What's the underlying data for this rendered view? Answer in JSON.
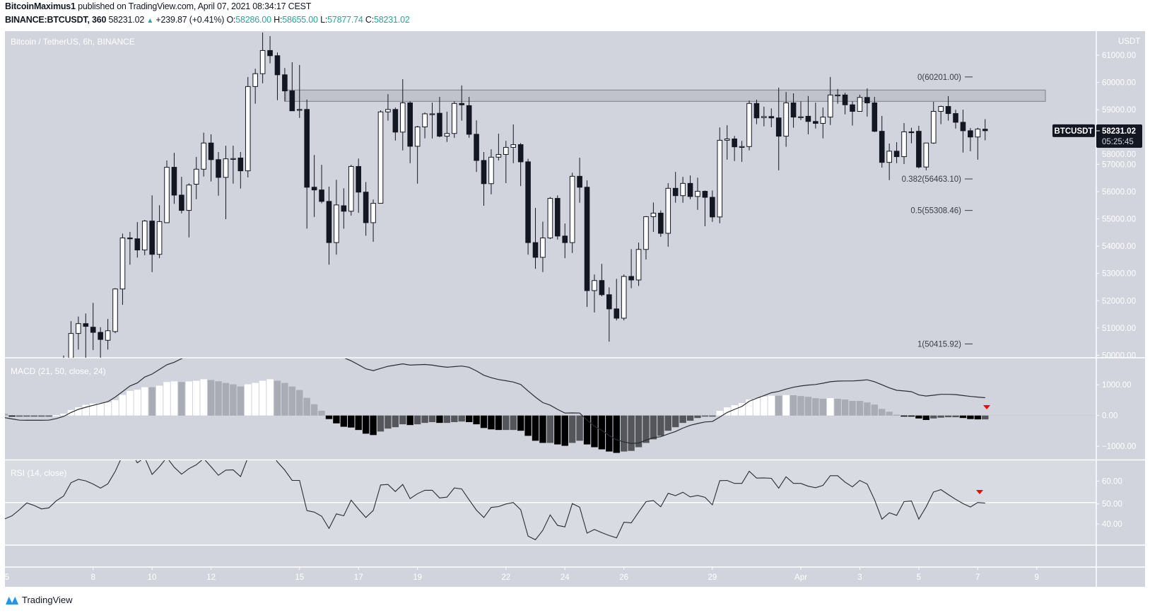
{
  "header": {
    "author": "BitcoinMaximus1",
    "published": "published on TradingView.com, April 07, 2021 08:34:17 CEST",
    "symbol": "BINANCE:BTCUSDT, 360",
    "last": "58231.02",
    "change": "+239.87 (+0.41%)",
    "open_label": "O:",
    "open": "58286.00",
    "high_label": "H:",
    "high": "58655.00",
    "low_label": "L:",
    "low": "57877.74",
    "close_label": "C:",
    "close": "58231.02"
  },
  "colors": {
    "background": "#d1d4dc",
    "rsi_band": "#d8dbe1",
    "up_candle": "#ffffff",
    "down_candle": "#131722",
    "hist_pos_rising": "#ffffff",
    "hist_pos_falling": "#a9acb4",
    "hist_neg_falling": "#000000",
    "hist_neg_rising": "#54565b",
    "line": "#2a2c31",
    "zone_fill": "rgba(160,163,172,0.35)",
    "zone_border": "#8a8d94",
    "annotation": "#ff0000",
    "accent": "#26a69a"
  },
  "price_label": {
    "symbol": "BTCUSDT",
    "price": "58231.02",
    "countdown": "05:25:45"
  },
  "time_axis": {
    "labels": [
      "5",
      "8",
      "10",
      "12",
      "15",
      "17",
      "19",
      "22",
      "24",
      "26",
      "29",
      "Apr",
      "3",
      "5",
      "7",
      "9"
    ]
  },
  "footer": {
    "brand": "TradingView"
  },
  "chart_data": [
    {
      "type": "candlestick",
      "title": "Bitcoin / TetherUS, 6h, BINANCE",
      "currency": "USDT",
      "y_ticks": [
        "61000.00",
        "60000.00",
        "59000.00",
        "58000.00",
        "57000.00",
        "56000.00",
        "55000.00",
        "54000.00",
        "53000.00",
        "52000.00",
        "51000.00",
        "50000.00"
      ],
      "ylim": [
        49900,
        61880
      ],
      "last_price": 58231.02,
      "resistance_zone": [
        59305,
        59720
      ],
      "fib_levels": [
        {
          "label": "0(60201.00)",
          "price": 60201.0
        },
        {
          "label": "0.382(56463.10)",
          "price": 56463.1
        },
        {
          "label": "0.5(55308.46)",
          "price": 55308.46
        },
        {
          "label": "1(50415.92)",
          "price": 50415.92
        }
      ],
      "ohlc": [
        [
          49400,
          49990,
          49000,
          49800
        ],
        [
          49700,
          51250,
          49400,
          50800
        ],
        [
          50800,
          51420,
          50210,
          51160
        ],
        [
          51160,
          51530,
          49600,
          51060
        ],
        [
          51030,
          51920,
          50190,
          50840
        ],
        [
          50840,
          51030,
          49700,
          50580
        ],
        [
          50550,
          51330,
          50210,
          50900
        ],
        [
          50870,
          52460,
          50810,
          52430
        ],
        [
          52430,
          54460,
          51850,
          54300
        ],
        [
          54300,
          54520,
          53320,
          54270
        ],
        [
          54270,
          54880,
          53580,
          53860
        ],
        [
          53860,
          54960,
          53670,
          54920
        ],
        [
          54920,
          55860,
          53050,
          53700
        ],
        [
          53700,
          55500,
          53560,
          54900
        ],
        [
          54860,
          57140,
          54860,
          56890
        ],
        [
          56890,
          57420,
          55550,
          55870
        ],
        [
          55870,
          56540,
          55200,
          55310
        ],
        [
          55310,
          56300,
          54320,
          56240
        ],
        [
          56270,
          57270,
          55720,
          56820
        ],
        [
          56820,
          58160,
          56550,
          57780
        ],
        [
          57780,
          58100,
          56370,
          57170
        ],
        [
          57170,
          57450,
          55850,
          56520
        ],
        [
          56520,
          57680,
          54990,
          57200
        ],
        [
          57200,
          57680,
          56290,
          57210
        ],
        [
          57230,
          57450,
          56110,
          56760
        ],
        [
          56760,
          60200,
          56520,
          59850
        ],
        [
          59850,
          60500,
          59220,
          60320
        ],
        [
          60320,
          61830,
          59970,
          61170
        ],
        [
          61170,
          61700,
          60700,
          60980
        ],
        [
          60980,
          61100,
          59350,
          60280
        ],
        [
          60280,
          60530,
          59300,
          59690
        ],
        [
          59690,
          60740,
          58960,
          58960
        ],
        [
          58980,
          60640,
          58700,
          59010
        ],
        [
          59010,
          59370,
          54640,
          56160
        ],
        [
          56160,
          57340,
          55070,
          56060
        ],
        [
          56060,
          56980,
          55570,
          55640
        ],
        [
          55640,
          56180,
          53320,
          54130
        ],
        [
          54130,
          56430,
          53690,
          55510
        ],
        [
          55480,
          56120,
          54640,
          55280
        ],
        [
          55280,
          56980,
          55120,
          56920
        ],
        [
          56920,
          57210,
          55220,
          55980
        ],
        [
          55980,
          56350,
          54380,
          54860
        ],
        [
          54860,
          55710,
          54160,
          55570
        ],
        [
          55570,
          58980,
          55570,
          58920
        ],
        [
          58920,
          59570,
          58600,
          59010
        ],
        [
          59010,
          59080,
          57870,
          58180
        ],
        [
          58180,
          60120,
          57510,
          59250
        ],
        [
          59250,
          59310,
          57040,
          57660
        ],
        [
          57660,
          58410,
          56290,
          58370
        ],
        [
          58370,
          58900,
          57950,
          58850
        ],
        [
          58850,
          59260,
          57950,
          58850
        ],
        [
          58870,
          59470,
          57990,
          58030
        ],
        [
          58030,
          58930,
          57820,
          58130
        ],
        [
          58130,
          59310,
          57970,
          59230
        ],
        [
          59230,
          59890,
          58600,
          59180
        ],
        [
          59150,
          59470,
          57970,
          58100
        ],
        [
          58100,
          58610,
          56720,
          57140
        ],
        [
          57140,
          57450,
          55480,
          56290
        ],
        [
          56290,
          57550,
          55900,
          57260
        ],
        [
          57260,
          58120,
          57140,
          57360
        ],
        [
          57360,
          57860,
          56310,
          57620
        ],
        [
          57620,
          58460,
          57040,
          57720
        ],
        [
          57720,
          57780,
          56200,
          57090
        ],
        [
          57090,
          57200,
          53690,
          54130
        ],
        [
          54130,
          55400,
          53170,
          53590
        ],
        [
          53590,
          54900,
          53050,
          54300
        ],
        [
          54300,
          55800,
          54260,
          55750
        ],
        [
          55750,
          55860,
          54240,
          54370
        ],
        [
          54370,
          54830,
          53560,
          54130
        ],
        [
          54130,
          56690,
          53750,
          56560
        ],
        [
          56560,
          57240,
          55590,
          56160
        ],
        [
          56160,
          56410,
          51770,
          52370
        ],
        [
          52370,
          52960,
          51570,
          52740
        ],
        [
          52740,
          53350,
          52160,
          52220
        ],
        [
          52220,
          52490,
          50500,
          51700
        ],
        [
          51700,
          52800,
          51280,
          51360
        ],
        [
          51360,
          52960,
          51280,
          52890
        ],
        [
          52890,
          53890,
          52460,
          52760
        ],
        [
          52760,
          54130,
          52540,
          53880
        ],
        [
          53880,
          55100,
          53510,
          55080
        ],
        [
          55080,
          55600,
          54520,
          55210
        ],
        [
          55210,
          55310,
          54340,
          54470
        ],
        [
          54470,
          56310,
          53980,
          56120
        ],
        [
          56120,
          56720,
          55590,
          55850
        ],
        [
          55850,
          56540,
          55590,
          56300
        ],
        [
          56300,
          56590,
          55720,
          55820
        ],
        [
          55820,
          56510,
          55330,
          56010
        ],
        [
          56010,
          56040,
          54730,
          55790
        ],
        [
          55790,
          56040,
          54890,
          55070
        ],
        [
          55070,
          58350,
          54840,
          57880
        ],
        [
          57880,
          58430,
          57170,
          57930
        ],
        [
          57930,
          58040,
          57120,
          57640
        ],
        [
          57640,
          57860,
          57090,
          57650
        ],
        [
          57650,
          59340,
          57510,
          59230
        ],
        [
          59230,
          59370,
          58470,
          58700
        ],
        [
          58710,
          59110,
          58390,
          58750
        ],
        [
          58750,
          59050,
          58360,
          58700
        ],
        [
          58700,
          59810,
          56780,
          58030
        ],
        [
          58030,
          59650,
          57640,
          59250
        ],
        [
          59250,
          59600,
          58340,
          58730
        ],
        [
          58740,
          59310,
          58620,
          58740
        ],
        [
          58760,
          59500,
          58100,
          58570
        ],
        [
          58570,
          59260,
          58310,
          58500
        ],
        [
          58500,
          59080,
          57950,
          58730
        ],
        [
          58730,
          60200,
          58440,
          59540
        ],
        [
          59540,
          59760,
          59220,
          59540
        ],
        [
          59540,
          59620,
          58830,
          59180
        ],
        [
          59180,
          59310,
          58420,
          58940
        ],
        [
          58940,
          59550,
          58940,
          59450
        ],
        [
          59450,
          59780,
          58750,
          59250
        ],
        [
          59250,
          59470,
          58180,
          58210
        ],
        [
          58210,
          58770,
          56880,
          57070
        ],
        [
          57070,
          57760,
          56420,
          57480
        ],
        [
          57480,
          57810,
          57040,
          57280
        ],
        [
          57280,
          58510,
          57010,
          58190
        ],
        [
          58190,
          58340,
          57770,
          58180
        ],
        [
          58210,
          58410,
          56850,
          56900
        ],
        [
          56900,
          57780,
          56780,
          57780
        ],
        [
          57780,
          59290,
          57750,
          58940
        ],
        [
          58940,
          59150,
          58470,
          59120
        ],
        [
          59120,
          59500,
          58600,
          58860
        ],
        [
          58860,
          59000,
          58310,
          58540
        ],
        [
          58540,
          59000,
          57430,
          58230
        ],
        [
          58230,
          58330,
          57480,
          58000
        ],
        [
          58000,
          58340,
          57170,
          58290
        ],
        [
          58286,
          58655,
          57877.74,
          58231.02
        ]
      ]
    },
    {
      "type": "bar",
      "title": "MACD (21, 50, close, 24)",
      "y_ticks": [
        {
          "label": "1000.00",
          "value": 1000
        },
        {
          "label": "0.00",
          "value": 0
        },
        {
          "label": "−1000.00",
          "value": -1000
        }
      ],
      "histogram": [
        60,
        -20,
        -20,
        -20,
        -20,
        -20,
        -20,
        10,
        60,
        180,
        270,
        350,
        390,
        410,
        430,
        500,
        670,
        800,
        840,
        920,
        920,
        970,
        1090,
        1110,
        1090,
        1110,
        1130,
        1180,
        1155,
        1115,
        1060,
        1015,
        945,
        1015,
        1060,
        1130,
        1180,
        1130,
        1060,
        945,
        830,
        575,
        365,
        155,
        -115,
        -255,
        -365,
        -390,
        -470,
        -590,
        -635,
        -520,
        -425,
        -380,
        -285,
        -310,
        -285,
        -240,
        -215,
        -240,
        -240,
        -215,
        -195,
        -215,
        -285,
        -405,
        -450,
        -470,
        -470,
        -470,
        -495,
        -660,
        -820,
        -890,
        -890,
        -940,
        -985,
        -890,
        -820,
        -940,
        -1030,
        -1100,
        -1170,
        -1215,
        -1170,
        -1150,
        -1030,
        -890,
        -775,
        -660,
        -495,
        -380,
        -240,
        -170,
        -80,
        -30,
        -30,
        150,
        265,
        335,
        405,
        520,
        565,
        620,
        645,
        645,
        665,
        660,
        635,
        610,
        565,
        545,
        565,
        545,
        520,
        475,
        475,
        425,
        355,
        215,
        125,
        30,
        -5,
        -25,
        -95,
        -145,
        -95,
        -70,
        -55,
        -55,
        -80,
        -115,
        -125,
        -125
      ],
      "macd": [
        -70,
        -110,
        -150,
        -155,
        -155,
        -155,
        -150,
        -100,
        -30,
        100,
        200,
        270,
        330,
        390,
        450,
        600,
        780,
        960,
        1060,
        1250,
        1350,
        1500,
        1650,
        1730,
        1850,
        1950,
        2050,
        2150,
        2200,
        2250,
        2280,
        2300,
        2300,
        2300,
        2300,
        2280,
        2250,
        2220,
        2200,
        2150,
        2100,
        2050,
        2000,
        1950,
        1920,
        1900,
        1880,
        1780,
        1650,
        1520,
        1460,
        1530,
        1600,
        1640,
        1680,
        1640,
        1650,
        1660,
        1640,
        1600,
        1570,
        1590,
        1610,
        1570,
        1450,
        1310,
        1230,
        1170,
        1130,
        1090,
        1010,
        800,
        600,
        420,
        335,
        200,
        80,
        85,
        80,
        -150,
        -350,
        -480,
        -650,
        -790,
        -860,
        -905,
        -895,
        -800,
        -720,
        -690,
        -600,
        -520,
        -410,
        -320,
        -260,
        -210,
        -195,
        -50,
        100,
        200,
        295,
        465,
        560,
        645,
        740,
        785,
        860,
        920,
        960,
        990,
        1010,
        1050,
        1100,
        1120,
        1125,
        1125,
        1140,
        1160,
        1100,
        1000,
        900,
        820,
        800,
        775,
        670,
        635,
        660,
        690,
        690,
        680,
        650,
        620,
        600,
        580
      ]
    },
    {
      "type": "line",
      "title": "RSI (14, close)",
      "y_ticks": [
        {
          "label": "60.00",
          "value": 60
        },
        {
          "label": "50.00",
          "value": 50
        },
        {
          "label": "40.00",
          "value": 40
        }
      ],
      "band": [
        30,
        70
      ],
      "midline": 50,
      "values": [
        42.3,
        43.8,
        46.6,
        49.8,
        48.6,
        47.0,
        47.5,
        50.8,
        53.0,
        59.2,
        60.8,
        60.1,
        58.6,
        56.7,
        58.7,
        64.5,
        72,
        74,
        68.5,
        71,
        63.1,
        66.7,
        71,
        66.5,
        63.2,
        65.8,
        67.6,
        70.5,
        66.7,
        62.7,
        65.1,
        65.2,
        62.1,
        71,
        76,
        78,
        74,
        68.9,
        65.1,
        60.3,
        60.3,
        46.2,
        45.5,
        43.6,
        37.9,
        44.7,
        43.8,
        51.1,
        46.9,
        43,
        46.3,
        58.2,
        58.4,
        55.1,
        58.4,
        51.8,
        54.1,
        55.7,
        55.7,
        52.1,
        52.5,
        56.8,
        56.3,
        51.3,
        46.4,
        43,
        47.7,
        48.1,
        49.3,
        50,
        46.6,
        34.3,
        32.6,
        37,
        44.2,
        39.3,
        38.6,
        49.5,
        47.8,
        35.7,
        37.4,
        35.9,
        34.6,
        33.5,
        40.8,
        40.5,
        45.5,
        50.4,
        50.9,
        48,
        54.3,
        53.2,
        54.8,
        52.6,
        53.3,
        52.4,
        48.9,
        60.2,
        60.3,
        58.9,
        58.9,
        64.6,
        61.4,
        61.5,
        61.3,
        56.7,
        62,
        58.9,
        58.9,
        57.6,
        56.9,
        58,
        62.5,
        62.5,
        59.5,
        57.3,
        60.3,
        58.6,
        51.3,
        42.2,
        45.2,
        44,
        50.4,
        50.7,
        42.2,
        48,
        54.9,
        56,
        53.7,
        51.5,
        49.5,
        47.9,
        50,
        49.7
      ]
    }
  ]
}
